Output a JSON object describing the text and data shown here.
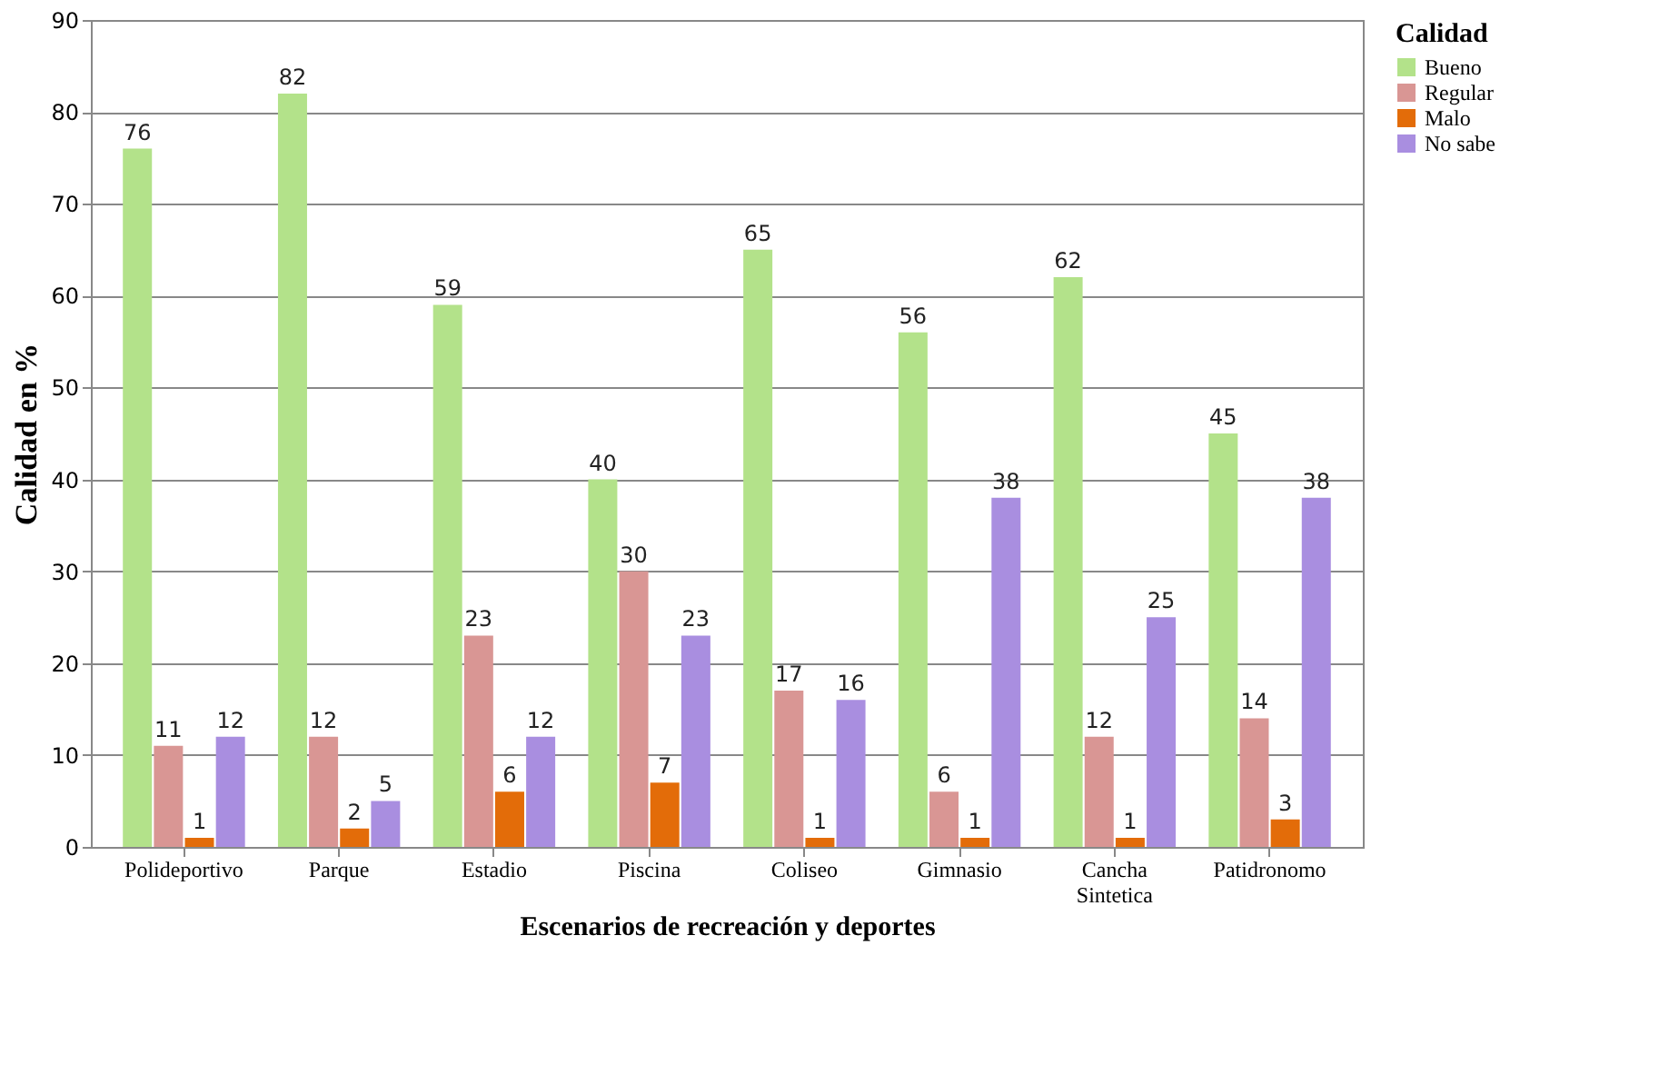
{
  "chart_data": {
    "type": "bar",
    "xlabel": "Escenarios de recreación y deportes",
    "ylabel": "Calidad en %",
    "legend_title": "Calidad",
    "categories": [
      "Polideportivo",
      "Parque",
      "Estadio",
      "Piscina",
      "Coliseo",
      "Gimnasio",
      "Cancha Sintetica",
      "Patidronomo"
    ],
    "series": [
      {
        "name": "Bueno",
        "color": "#b3e28a",
        "values": [
          76,
          82,
          59,
          40,
          65,
          56,
          62,
          45
        ]
      },
      {
        "name": "Regular",
        "color": "#d99694",
        "values": [
          11,
          12,
          23,
          30,
          17,
          6,
          12,
          14
        ]
      },
      {
        "name": "Malo",
        "color": "#e36c09",
        "values": [
          1,
          2,
          6,
          7,
          1,
          1,
          1,
          3
        ]
      },
      {
        "name": "No sabe",
        "color": "#a98ee0",
        "values": [
          12,
          5,
          12,
          23,
          16,
          38,
          25,
          38
        ]
      }
    ],
    "ylim": [
      0,
      90
    ],
    "yticks": [
      0,
      10,
      20,
      30,
      40,
      50,
      60,
      70,
      80,
      90
    ],
    "grid": "y",
    "legend": "right",
    "data_labels": true
  }
}
